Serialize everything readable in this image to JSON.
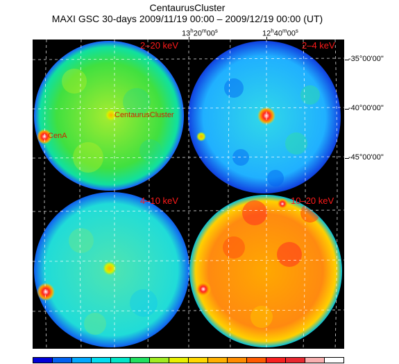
{
  "header": {
    "title": "CentaurusCluster",
    "subtitle": "MAXI GSC 30-days 2009/11/19 00:00 – 2009/12/19 00:00 (UT)"
  },
  "axes": {
    "ra_labels": [
      {
        "h": "13",
        "m": "20",
        "s": "00"
      },
      {
        "h": "12",
        "m": "40",
        "s": "00"
      }
    ],
    "dec_labels": [
      "-35°00'00\"",
      "-40°00'00\"",
      "-45°00'00\""
    ]
  },
  "panels": [
    {
      "band": "2–20 keV",
      "fill": "#2fd640"
    },
    {
      "band": "2–4 keV",
      "fill": "#1fa8ff"
    },
    {
      "band": "4–10 keV",
      "fill": "#28e0c0"
    },
    {
      "band": "10–20 keV",
      "fill": "#ff9a10"
    }
  ],
  "sources": {
    "cluster": "CentaurusCluster",
    "cena": "CenA"
  },
  "colorbar": [
    "#0000d8",
    "#0060f0",
    "#00a8ff",
    "#00ddf0",
    "#00e6c8",
    "#20e060",
    "#a0ec20",
    "#e8f000",
    "#ffd800",
    "#ffb000",
    "#ff8c00",
    "#ff5a00",
    "#f82020",
    "#e82830",
    "#f8b0b0",
    "#ffffff"
  ]
}
